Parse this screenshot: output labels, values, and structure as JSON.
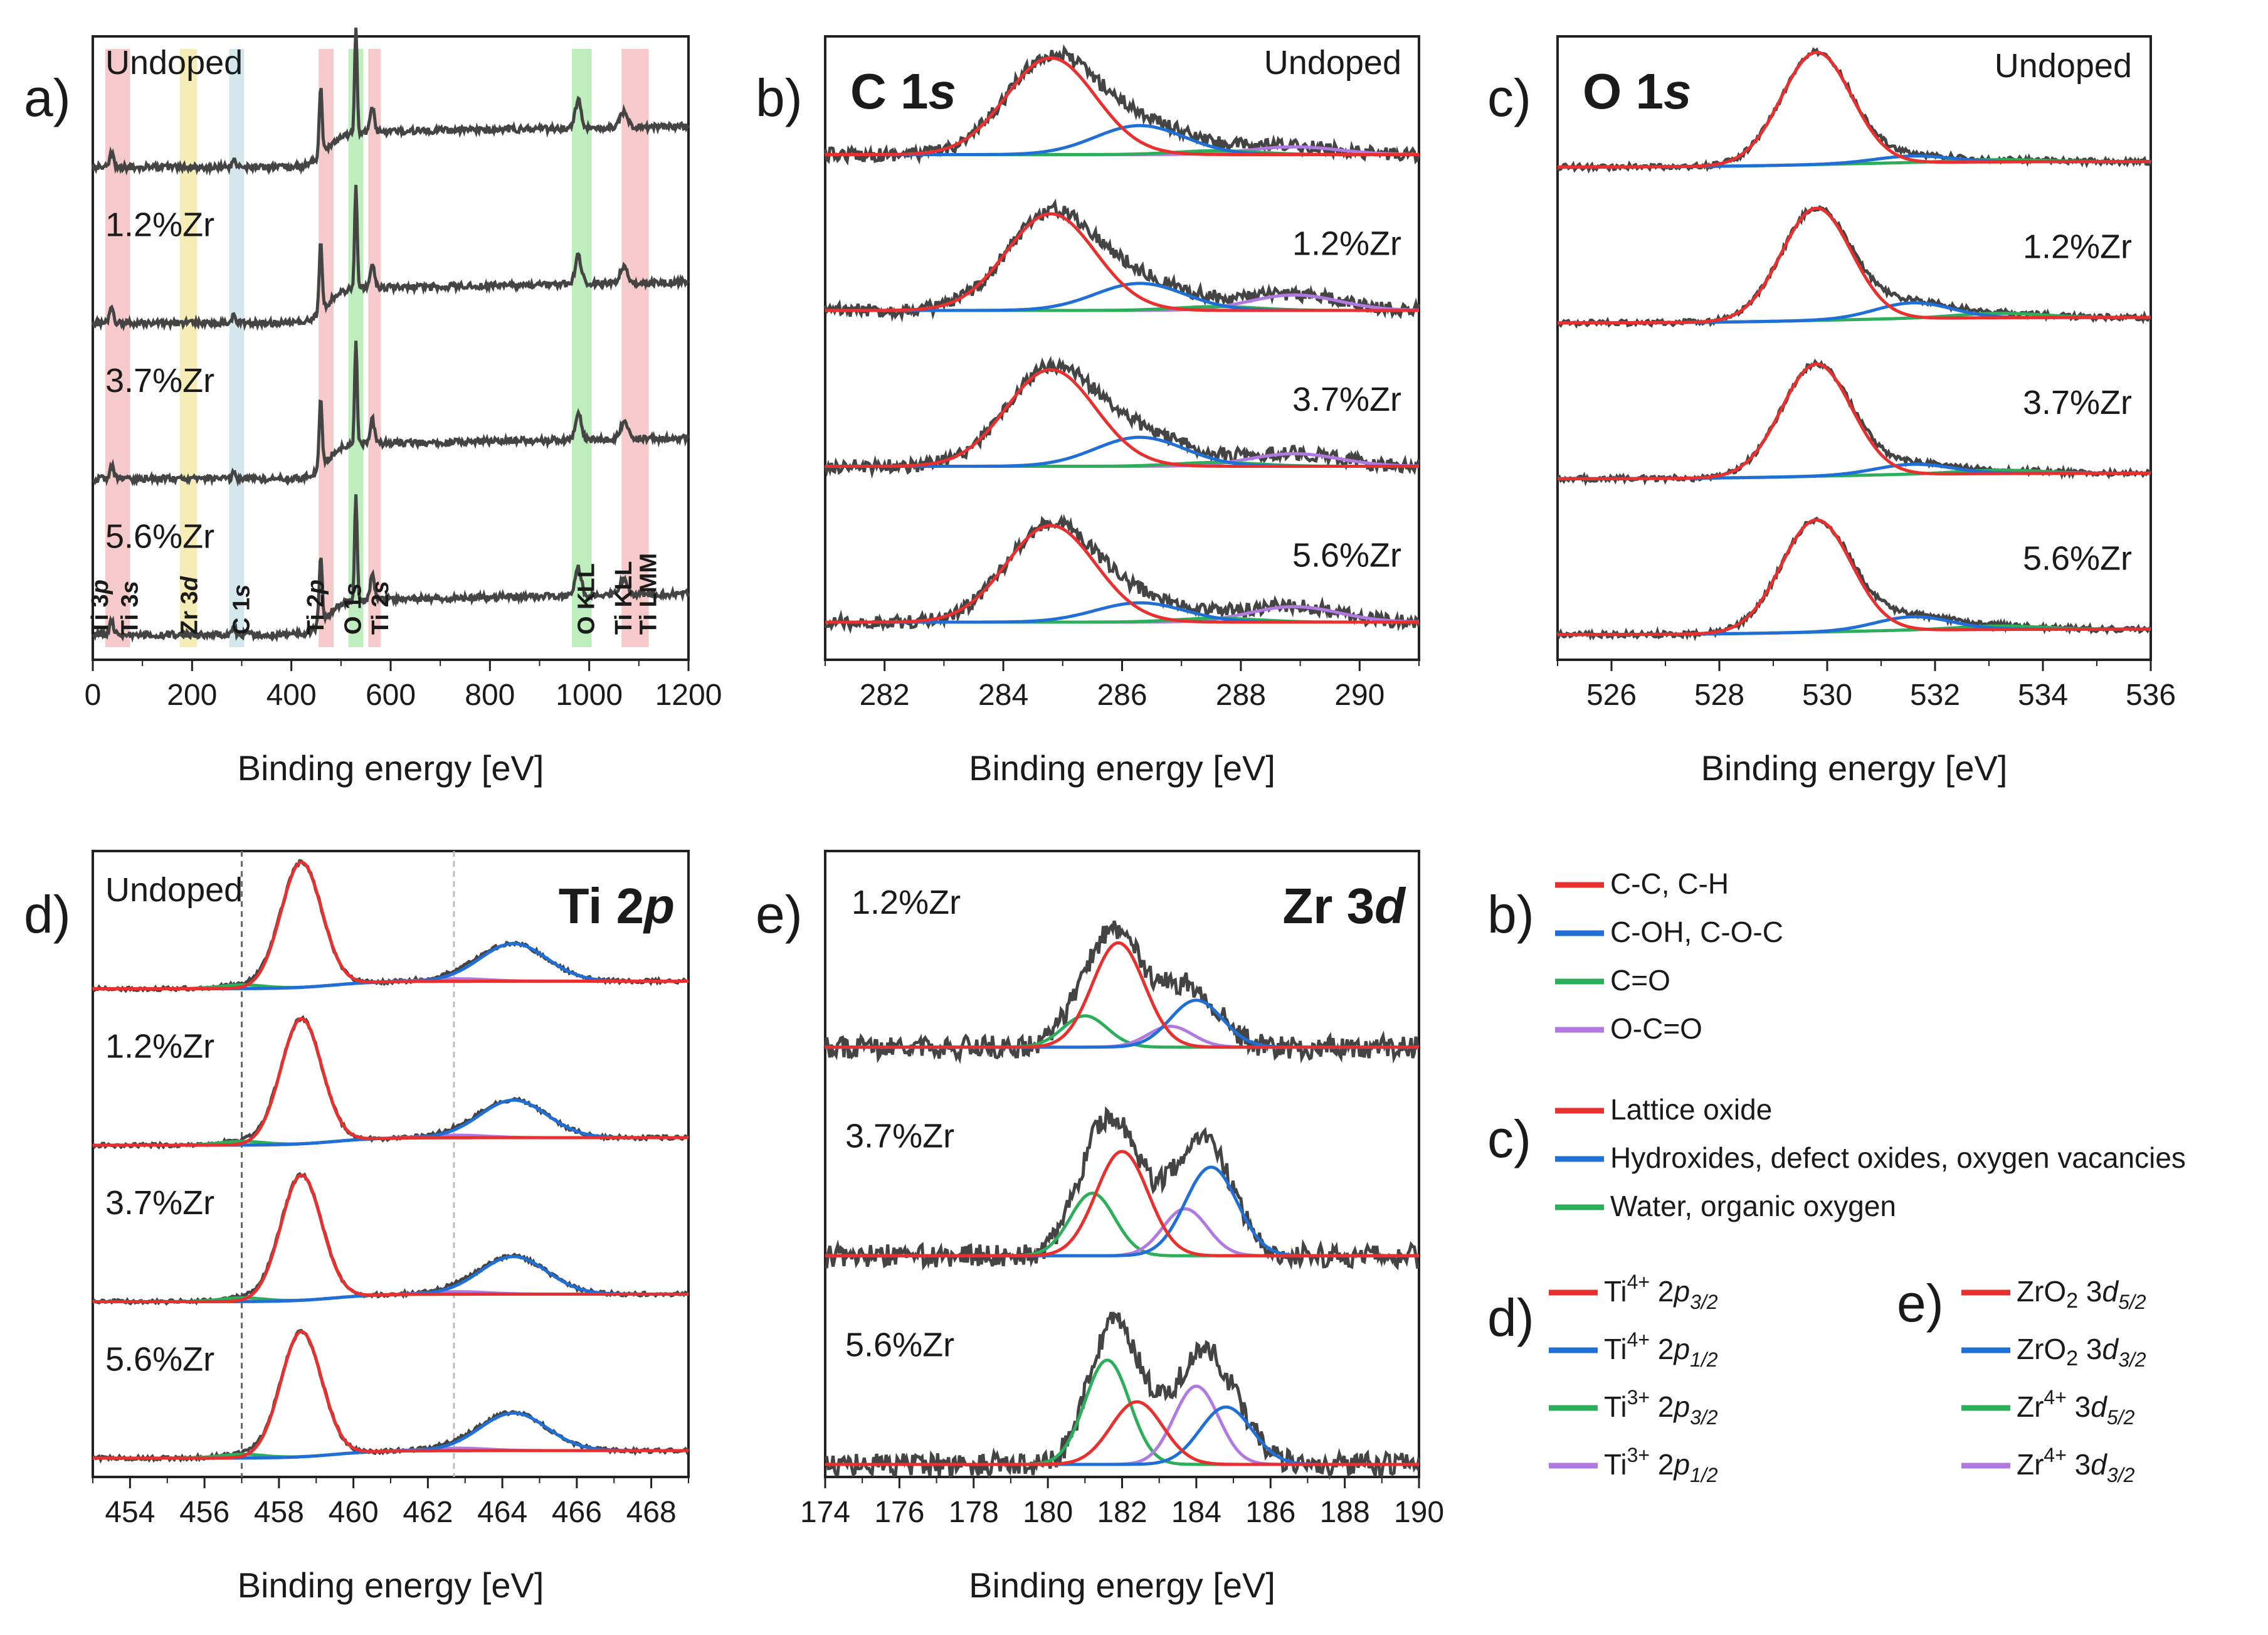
{
  "figure": {
    "xlabel": "Binding energy [eV]",
    "colors": {
      "data": "#444444",
      "red": "#e8302f",
      "blue": "#1f6fd6",
      "green": "#2cae5a",
      "purple": "#b07ae0",
      "shade_red": "#f3b8b8",
      "shade_yellow": "#f2e59e",
      "shade_blue": "#c4dfe6",
      "shade_green": "#a8e8a8"
    }
  },
  "chart_data": [
    {
      "id": "a",
      "type": "line",
      "panel_label": "a)",
      "title": "",
      "xlabel": "Binding energy [eV]",
      "xlim": [
        0,
        1200
      ],
      "xticks": [
        0,
        200,
        400,
        600,
        800,
        1000,
        1200
      ],
      "samples": [
        "Undoped",
        "1.2%Zr",
        "3.7%Zr",
        "5.6%Zr"
      ],
      "regions": [
        {
          "from": 25,
          "to": 75,
          "color": "red"
        },
        {
          "from": 175,
          "to": 210,
          "color": "yellow"
        },
        {
          "from": 275,
          "to": 305,
          "color": "blue"
        },
        {
          "from": 455,
          "to": 485,
          "color": "red"
        },
        {
          "from": 515,
          "to": 545,
          "color": "green"
        },
        {
          "from": 555,
          "to": 580,
          "color": "red"
        },
        {
          "from": 965,
          "to": 1005,
          "color": "green"
        },
        {
          "from": 1065,
          "to": 1120,
          "color": "red"
        }
      ],
      "peak_labels": [
        {
          "text": "Ti 3p",
          "x": 30
        },
        {
          "text": "Ti 3s",
          "x": 90
        },
        {
          "text": "Zr 3d",
          "x": 210
        },
        {
          "text": "C 1s",
          "x": 315
        },
        {
          "text": "Ti 2p",
          "x": 465
        },
        {
          "text": "O 1s",
          "x": 540
        },
        {
          "text": "Ti 2s",
          "x": 595
        },
        {
          "text": "O KLL",
          "x": 1010
        },
        {
          "text": "Ti KLL",
          "x": 1085
        },
        {
          "text": "Ti LMM",
          "x": 1135
        }
      ]
    },
    {
      "id": "b",
      "type": "line",
      "panel_label": "b)",
      "title": "C 1s",
      "xlabel": "Binding energy [eV]",
      "xlim": [
        281,
        291
      ],
      "xticks": [
        282,
        284,
        286,
        288,
        290
      ],
      "samples": [
        "Undoped",
        "1.2%Zr",
        "3.7%Zr",
        "5.6%Zr"
      ],
      "components": [
        {
          "name": "C-C, C-H",
          "color": "red",
          "center": 284.8,
          "width": 0.75
        },
        {
          "name": "C-OH, C-O-C",
          "color": "blue",
          "center": 286.3,
          "width": 0.75
        },
        {
          "name": "C=O",
          "color": "green",
          "center": 287.6,
          "width": 0.7
        },
        {
          "name": "O-C=O",
          "color": "purple",
          "center": 288.9,
          "width": 0.75
        }
      ],
      "amplitudes": [
        [
          1.0,
          0.3,
          0.04,
          0.08
        ],
        [
          1.0,
          0.28,
          0.04,
          0.16
        ],
        [
          1.0,
          0.3,
          0.04,
          0.13
        ],
        [
          1.0,
          0.2,
          0.04,
          0.16
        ]
      ]
    },
    {
      "id": "c",
      "type": "line",
      "panel_label": "c)",
      "title": "O 1s",
      "xlabel": "Binding energy [eV]",
      "xlim": [
        525,
        536
      ],
      "xticks": [
        526,
        528,
        530,
        532,
        534,
        536
      ],
      "samples": [
        "Undoped",
        "1.2%Zr",
        "3.7%Zr",
        "5.6%Zr"
      ],
      "components": [
        {
          "name": "Lattice oxide",
          "color": "red",
          "center": 529.8,
          "width": 0.65
        },
        {
          "name": "Hydroxides, defect oxides, oxygen vacancies",
          "color": "blue",
          "center": 531.6,
          "width": 0.7
        },
        {
          "name": "Water, organic oxygen",
          "color": "green",
          "center": 533.2,
          "width": 0.8
        }
      ],
      "amplitudes": [
        [
          1.0,
          0.06,
          0.02
        ],
        [
          1.0,
          0.14,
          0.04
        ],
        [
          1.0,
          0.09,
          0.03
        ],
        [
          1.0,
          0.12,
          0.03
        ]
      ]
    },
    {
      "id": "d",
      "type": "line",
      "panel_label": "d)",
      "title": "Ti 2p",
      "xlabel": "Binding energy [eV]",
      "xlim": [
        453,
        469
      ],
      "xticks": [
        454,
        456,
        458,
        460,
        462,
        464,
        466,
        468
      ],
      "samples": [
        "Undoped",
        "1.2%Zr",
        "3.7%Zr",
        "5.6%Zr"
      ],
      "reference_lines": [
        457.0,
        462.7
      ],
      "components": [
        {
          "name": "Ti⁴⁺ 2p3/2",
          "color": "red",
          "center": 458.6,
          "width": 0.55
        },
        {
          "name": "Ti⁴⁺ 2p1/2",
          "color": "blue",
          "center": 464.3,
          "width": 0.9
        },
        {
          "name": "Ti³⁺ 2p3/2",
          "color": "green",
          "center": 457.0,
          "width": 0.6
        },
        {
          "name": "Ti³⁺ 2p1/2",
          "color": "purple",
          "center": 462.8,
          "width": 0.8
        }
      ],
      "amplitudes": [
        [
          1.0,
          0.3,
          0.03,
          0.02
        ],
        [
          1.0,
          0.3,
          0.03,
          0.02
        ],
        [
          1.0,
          0.3,
          0.03,
          0.02
        ],
        [
          1.0,
          0.3,
          0.03,
          0.02
        ]
      ]
    },
    {
      "id": "e",
      "type": "line",
      "panel_label": "e)",
      "title": "Zr 3d",
      "xlabel": "Binding energy [eV]",
      "xlim": [
        174,
        190
      ],
      "xticks": [
        174,
        176,
        178,
        180,
        182,
        184,
        186,
        188,
        190
      ],
      "samples": [
        "1.2%Zr",
        "3.7%Zr",
        "5.6%Zr"
      ],
      "components": [
        {
          "name": "ZrO2 3d5/2",
          "color": "red",
          "center": 182.0,
          "width": 0.7
        },
        {
          "name": "ZrO2 3d3/2",
          "color": "blue",
          "center": 184.4,
          "width": 0.7
        },
        {
          "name": "Zr⁴⁺ 3d5/2",
          "color": "green",
          "center": 181.2,
          "width": 0.6
        },
        {
          "name": "Zr⁴⁺ 3d3/2",
          "color": "purple",
          "center": 183.6,
          "width": 0.6
        }
      ],
      "centers_by_sample": [
        [
          181.9,
          184.0,
          181.0,
          183.3
        ],
        [
          182.0,
          184.4,
          181.2,
          183.7
        ],
        [
          182.4,
          184.8,
          181.6,
          184.0
        ]
      ],
      "amplitudes": [
        [
          1.0,
          0.45,
          0.3,
          0.2
        ],
        [
          1.0,
          0.85,
          0.6,
          0.45
        ],
        [
          0.6,
          0.55,
          1.0,
          0.75
        ]
      ]
    }
  ],
  "legends": [
    {
      "label": "b)",
      "items": [
        {
          "text": "C-C, C-H",
          "color": "red"
        },
        {
          "text": "C-OH, C-O-C",
          "color": "blue"
        },
        {
          "text": "C=O",
          "color": "green"
        },
        {
          "text": "O-C=O",
          "color": "purple"
        }
      ]
    },
    {
      "label": "c)",
      "items": [
        {
          "text": "Lattice oxide",
          "color": "red"
        },
        {
          "text": "Hydroxides, defect oxides, oxygen vacancies",
          "color": "blue"
        },
        {
          "text": "Water, organic oxygen",
          "color": "green"
        }
      ]
    },
    {
      "label": "d)",
      "items": [
        {
          "ion": "Ti",
          "charge": "4+",
          "orbital": "2",
          "l": "p",
          "j": "3/2",
          "color": "red"
        },
        {
          "ion": "Ti",
          "charge": "4+",
          "orbital": "2",
          "l": "p",
          "j": "1/2",
          "color": "blue"
        },
        {
          "ion": "Ti",
          "charge": "3+",
          "orbital": "2",
          "l": "p",
          "j": "3/2",
          "color": "green"
        },
        {
          "ion": "Ti",
          "charge": "3+",
          "orbital": "2",
          "l": "p",
          "j": "1/2",
          "color": "purple"
        }
      ]
    },
    {
      "label": "e)",
      "items": [
        {
          "ion": "ZrO",
          "sub": "2",
          "orbital": "3",
          "l": "d",
          "j": "5/2",
          "color": "red"
        },
        {
          "ion": "ZrO",
          "sub": "2",
          "orbital": "3",
          "l": "d",
          "j": "3/2",
          "color": "blue"
        },
        {
          "ion": "Zr",
          "charge": "4+",
          "orbital": "3",
          "l": "d",
          "j": "5/2",
          "color": "green"
        },
        {
          "ion": "Zr",
          "charge": "4+",
          "orbital": "3",
          "l": "d",
          "j": "3/2",
          "color": "purple"
        }
      ]
    }
  ]
}
